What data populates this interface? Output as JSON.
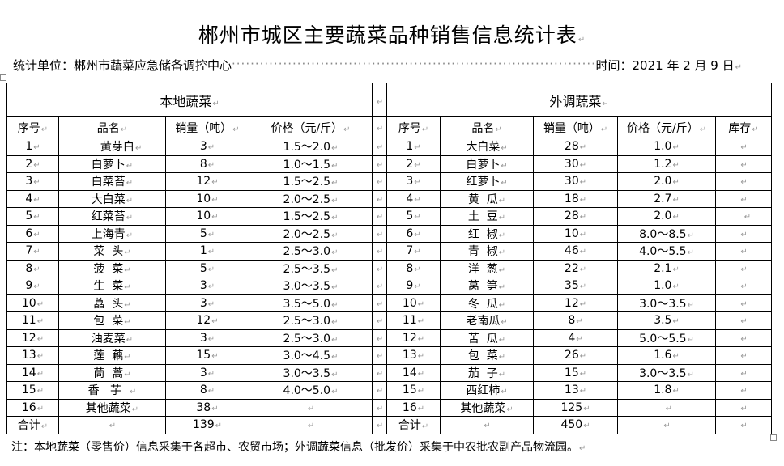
{
  "title": "郴州市城区主要蔬菜品种销售信息统计表",
  "unit_label": "统计单位：郴州市蔬菜应急储备调控中心",
  "date_label": "时间：2021 年 2 月 9 日",
  "local": {
    "group_label": "本地蔬菜",
    "headers": [
      "序号",
      "品名",
      "销量（吨）",
      "价格（元/斤）"
    ],
    "rows": [
      [
        "1",
        "     黄芽白",
        "3",
        "1.5～2.0"
      ],
      [
        "2",
        "白萝卜",
        "8",
        "1.0～1.5"
      ],
      [
        "3",
        "白菜苔",
        "12",
        "1.5～2.5"
      ],
      [
        "4",
        "大白菜",
        "10",
        "2.0～2.5"
      ],
      [
        "5",
        "红菜苔",
        "10",
        "1.5～2.5"
      ],
      [
        "6",
        "上海青",
        "5",
        "2.0～2.5"
      ],
      [
        "7",
        "菜  头",
        "1",
        "2.5～3.0"
      ],
      [
        "8",
        "菠  菜",
        "5",
        "2.5～3.5"
      ],
      [
        "9",
        "生  菜",
        "3",
        "3.0～3.5"
      ],
      [
        "10",
        "藠  头",
        "3",
        "3.5～5.0"
      ],
      [
        "11",
        "包  菜",
        "12",
        "2.5～3.0"
      ],
      [
        "12",
        "油麦菜",
        "3",
        "2.5～3.0"
      ],
      [
        "13",
        "莲  藕",
        "15",
        "3.0～4.5"
      ],
      [
        "14",
        "茼  蒿",
        "3",
        "3.0～3.5"
      ],
      [
        "15",
        "香   芋  ",
        "8",
        "4.0～5.0"
      ],
      [
        "16",
        "其他蔬菜",
        "38",
        ""
      ],
      [
        "合计",
        "",
        "139",
        ""
      ]
    ]
  },
  "external": {
    "group_label": "外调蔬菜",
    "headers": [
      "序号",
      "品名",
      "销量（吨）",
      "价格（元/斤）",
      "库存"
    ],
    "rows": [
      [
        "1",
        "大白菜",
        "28",
        "1.0",
        ""
      ],
      [
        "2",
        "白萝卜",
        "30",
        "1.2",
        ""
      ],
      [
        "3",
        "红萝卜",
        "30",
        "2.0",
        ""
      ],
      [
        "4",
        "黄  瓜",
        "18",
        "2.7",
        ""
      ],
      [
        "5",
        "土  豆",
        "28",
        "2.0",
        "  "
      ],
      [
        "6",
        "红  椒",
        "10",
        "8.0～8.5",
        ""
      ],
      [
        "7",
        "青  椒",
        "46",
        "4.0～5.5",
        ""
      ],
      [
        "8",
        "洋  葱",
        "22",
        "2.1",
        ""
      ],
      [
        "9",
        "莴  笋",
        "35",
        "1.0",
        ""
      ],
      [
        "10",
        "冬  瓜",
        "12",
        "3.0～3.5",
        ""
      ],
      [
        "11",
        "老南瓜",
        "8",
        "3.5",
        ""
      ],
      [
        "12",
        "苦  瓜",
        "4",
        "5.0～5.5",
        ""
      ],
      [
        "13",
        "包  菜",
        "26",
        "1.6",
        ""
      ],
      [
        "14",
        "茄  子",
        "15",
        "3.0～3.5",
        ""
      ],
      [
        "15",
        "西红柿",
        "13",
        "1.8",
        ""
      ],
      [
        "16",
        "其他蔬菜",
        "125",
        " ",
        ""
      ],
      [
        "合计",
        "",
        "450",
        "",
        ""
      ]
    ]
  },
  "note": "注：本地蔬菜（零售价）信息采集于各超市、农贸市场；外调蔬菜信息（批发价）采集于中农批农副产品物流园。"
}
